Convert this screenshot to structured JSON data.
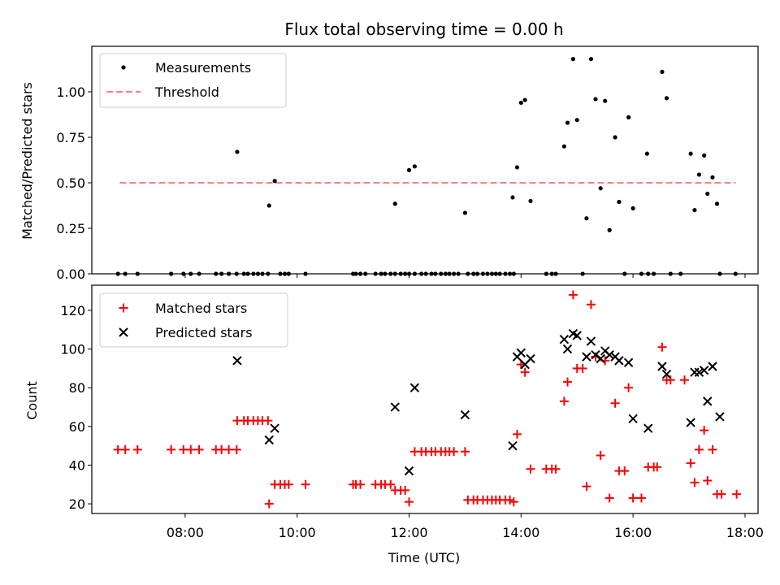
{
  "chart_data": [
    {
      "type": "scatter",
      "title": "Flux total observing time = 0.00 h",
      "xlabel": "",
      "ylabel": "Matched/Predicted stars",
      "xlim_hours": [
        6.333,
        18.233
      ],
      "ylim": [
        0,
        1.25
      ],
      "yticks": [
        0.0,
        0.25,
        0.5,
        0.75,
        1.0
      ],
      "ytick_labels": [
        "0.00",
        "0.25",
        "0.50",
        "0.75",
        "1.00"
      ],
      "threshold": {
        "value": 0.5,
        "x_range_hours": [
          6.833,
          17.833
        ],
        "color": "#ff8080"
      },
      "legend": {
        "placement": "upper-left",
        "entries": [
          "Measurements",
          "Threshold"
        ]
      },
      "series": [
        {
          "name": "Measurements",
          "color": "#000000",
          "points": [
            [
              6.8,
              0
            ],
            [
              6.93,
              0
            ],
            [
              7.15,
              0
            ],
            [
              7.75,
              0
            ],
            [
              7.97,
              0
            ],
            [
              8.1,
              0
            ],
            [
              8.25,
              0
            ],
            [
              8.55,
              0
            ],
            [
              8.65,
              0
            ],
            [
              8.78,
              0
            ],
            [
              8.92,
              0
            ],
            [
              8.93,
              0.67
            ],
            [
              9.05,
              0
            ],
            [
              9.12,
              0
            ],
            [
              9.22,
              0
            ],
            [
              9.3,
              0
            ],
            [
              9.38,
              0
            ],
            [
              9.48,
              0
            ],
            [
              9.5,
              0.375
            ],
            [
              9.6,
              0.51
            ],
            [
              9.7,
              0
            ],
            [
              9.78,
              0
            ],
            [
              9.85,
              0
            ],
            [
              10.15,
              0
            ],
            [
              11.0,
              0
            ],
            [
              11.05,
              0
            ],
            [
              11.13,
              0
            ],
            [
              11.22,
              0
            ],
            [
              11.4,
              0
            ],
            [
              11.5,
              0
            ],
            [
              11.57,
              0
            ],
            [
              11.67,
              0
            ],
            [
              11.75,
              0
            ],
            [
              11.75,
              0.385
            ],
            [
              11.85,
              0
            ],
            [
              11.93,
              0
            ],
            [
              12.0,
              0.57
            ],
            [
              12.1,
              0.59
            ],
            [
              12.0,
              0
            ],
            [
              12.1,
              0
            ],
            [
              12.22,
              0
            ],
            [
              12.3,
              0
            ],
            [
              12.4,
              0
            ],
            [
              12.47,
              0
            ],
            [
              12.57,
              0
            ],
            [
              12.65,
              0
            ],
            [
              12.72,
              0
            ],
            [
              12.8,
              0
            ],
            [
              12.88,
              0
            ],
            [
              13.0,
              0.335
            ],
            [
              13.05,
              0
            ],
            [
              13.15,
              0
            ],
            [
              13.22,
              0
            ],
            [
              13.32,
              0
            ],
            [
              13.4,
              0
            ],
            [
              13.48,
              0
            ],
            [
              13.55,
              0
            ],
            [
              13.62,
              0
            ],
            [
              13.72,
              0
            ],
            [
              13.8,
              0
            ],
            [
              13.87,
              0
            ],
            [
              13.85,
              0.42
            ],
            [
              13.93,
              0.585
            ],
            [
              14.0,
              0.94
            ],
            [
              14.07,
              0.955
            ],
            [
              14.17,
              0.4
            ],
            [
              14.45,
              0
            ],
            [
              14.55,
              0
            ],
            [
              14.62,
              0
            ],
            [
              14.77,
              0.7
            ],
            [
              14.83,
              0.83
            ],
            [
              14.93,
              1.18
            ],
            [
              15.0,
              0.845
            ],
            [
              15.1,
              0
            ],
            [
              15.17,
              0.305
            ],
            [
              15.25,
              1.18
            ],
            [
              15.33,
              0.96
            ],
            [
              15.42,
              0.47
            ],
            [
              15.5,
              0.95
            ],
            [
              15.58,
              0.24
            ],
            [
              15.68,
              0.75
            ],
            [
              15.75,
              0.395
            ],
            [
              15.85,
              0
            ],
            [
              15.92,
              0.86
            ],
            [
              16.0,
              0.36
            ],
            [
              16.15,
              0
            ],
            [
              16.27,
              0
            ],
            [
              16.37,
              0
            ],
            [
              16.25,
              0.66
            ],
            [
              16.52,
              1.11
            ],
            [
              16.6,
              0.965
            ],
            [
              16.67,
              0
            ],
            [
              16.85,
              0
            ],
            [
              17.03,
              0.66
            ],
            [
              17.1,
              0.35
            ],
            [
              17.18,
              0.545
            ],
            [
              17.27,
              0.65
            ],
            [
              17.33,
              0.44
            ],
            [
              17.42,
              0.53
            ],
            [
              17.5,
              0.385
            ],
            [
              17.55,
              0
            ],
            [
              17.83,
              0
            ]
          ]
        }
      ]
    },
    {
      "type": "scatter",
      "title": "",
      "xlabel": "Time (UTC)",
      "ylabel": "Count",
      "xlim_hours": [
        6.333,
        18.233
      ],
      "xticks_hours": [
        8,
        10,
        12,
        14,
        16,
        18
      ],
      "xtick_labels": [
        "08:00",
        "10:00",
        "12:00",
        "14:00",
        "16:00",
        "18:00"
      ],
      "ylim": [
        15,
        133
      ],
      "yticks": [
        20,
        40,
        60,
        80,
        100,
        120
      ],
      "ytick_labels": [
        "20",
        "40",
        "60",
        "80",
        "100",
        "120"
      ],
      "legend": {
        "placement": "upper-left",
        "entries": [
          "Matched stars",
          "Predicted stars"
        ]
      },
      "series": [
        {
          "name": "Matched stars",
          "marker": "plus",
          "color": "#ff0000",
          "points": [
            [
              6.8,
              48
            ],
            [
              6.93,
              48
            ],
            [
              7.15,
              48
            ],
            [
              7.75,
              48
            ],
            [
              7.97,
              48
            ],
            [
              8.1,
              48
            ],
            [
              8.25,
              48
            ],
            [
              8.55,
              48
            ],
            [
              8.65,
              48
            ],
            [
              8.78,
              48
            ],
            [
              8.92,
              48
            ],
            [
              8.93,
              63
            ],
            [
              9.05,
              63
            ],
            [
              9.12,
              63
            ],
            [
              9.22,
              63
            ],
            [
              9.3,
              63
            ],
            [
              9.38,
              63
            ],
            [
              9.48,
              63
            ],
            [
              9.5,
              20
            ],
            [
              9.6,
              30
            ],
            [
              9.7,
              30
            ],
            [
              9.78,
              30
            ],
            [
              9.85,
              30
            ],
            [
              10.15,
              30
            ],
            [
              11.0,
              30
            ],
            [
              11.05,
              30
            ],
            [
              11.13,
              30
            ],
            [
              11.4,
              30
            ],
            [
              11.5,
              30
            ],
            [
              11.57,
              30
            ],
            [
              11.67,
              30
            ],
            [
              11.75,
              27
            ],
            [
              11.85,
              27
            ],
            [
              11.93,
              27
            ],
            [
              12.0,
              21
            ],
            [
              12.1,
              47
            ],
            [
              12.22,
              47
            ],
            [
              12.3,
              47
            ],
            [
              12.4,
              47
            ],
            [
              12.47,
              47
            ],
            [
              12.57,
              47
            ],
            [
              12.65,
              47
            ],
            [
              12.72,
              47
            ],
            [
              12.8,
              47
            ],
            [
              13.0,
              47
            ],
            [
              13.05,
              22
            ],
            [
              13.15,
              22
            ],
            [
              13.22,
              22
            ],
            [
              13.32,
              22
            ],
            [
              13.4,
              22
            ],
            [
              13.48,
              22
            ],
            [
              13.55,
              22
            ],
            [
              13.62,
              22
            ],
            [
              13.72,
              22
            ],
            [
              13.8,
              22
            ],
            [
              13.87,
              21
            ],
            [
              13.93,
              56
            ],
            [
              14.0,
              92
            ],
            [
              14.07,
              88
            ],
            [
              14.17,
              38
            ],
            [
              14.45,
              38
            ],
            [
              14.55,
              38
            ],
            [
              14.62,
              38
            ],
            [
              14.77,
              73
            ],
            [
              14.83,
              83
            ],
            [
              14.93,
              128
            ],
            [
              15.0,
              90
            ],
            [
              15.1,
              90
            ],
            [
              15.17,
              29
            ],
            [
              15.25,
              123
            ],
            [
              15.33,
              96
            ],
            [
              15.42,
              45
            ],
            [
              15.5,
              94
            ],
            [
              15.58,
              23
            ],
            [
              15.68,
              72
            ],
            [
              15.75,
              37
            ],
            [
              15.85,
              37
            ],
            [
              15.92,
              80
            ],
            [
              16.0,
              23
            ],
            [
              16.15,
              23
            ],
            [
              16.27,
              39
            ],
            [
              16.37,
              39
            ],
            [
              16.43,
              39
            ],
            [
              16.52,
              101
            ],
            [
              16.6,
              84
            ],
            [
              16.67,
              84
            ],
            [
              16.92,
              84
            ],
            [
              17.03,
              41
            ],
            [
              17.1,
              31
            ],
            [
              17.18,
              48
            ],
            [
              17.27,
              58
            ],
            [
              17.33,
              32
            ],
            [
              17.42,
              48
            ],
            [
              17.5,
              25
            ],
            [
              17.58,
              25
            ],
            [
              17.85,
              25
            ]
          ]
        },
        {
          "name": "Predicted stars",
          "marker": "x",
          "color": "#000000",
          "points": [
            [
              8.93,
              94
            ],
            [
              9.5,
              53
            ],
            [
              9.6,
              59
            ],
            [
              11.75,
              70
            ],
            [
              12.0,
              37
            ],
            [
              12.1,
              80
            ],
            [
              13.0,
              66
            ],
            [
              13.85,
              50
            ],
            [
              13.93,
              96
            ],
            [
              14.0,
              98
            ],
            [
              14.07,
              92
            ],
            [
              14.17,
              95
            ],
            [
              14.77,
              105
            ],
            [
              14.83,
              100
            ],
            [
              14.93,
              108
            ],
            [
              15.0,
              107
            ],
            [
              15.17,
              96
            ],
            [
              15.25,
              104
            ],
            [
              15.33,
              97
            ],
            [
              15.42,
              95
            ],
            [
              15.5,
              99
            ],
            [
              15.58,
              97
            ],
            [
              15.68,
              96
            ],
            [
              15.75,
              94
            ],
            [
              15.92,
              93
            ],
            [
              16.0,
              64
            ],
            [
              16.27,
              59
            ],
            [
              16.52,
              91
            ],
            [
              16.6,
              87
            ],
            [
              17.03,
              62
            ],
            [
              17.1,
              88
            ],
            [
              17.18,
              88
            ],
            [
              17.27,
              89
            ],
            [
              17.33,
              73
            ],
            [
              17.42,
              91
            ],
            [
              17.55,
              65
            ]
          ]
        }
      ]
    }
  ]
}
